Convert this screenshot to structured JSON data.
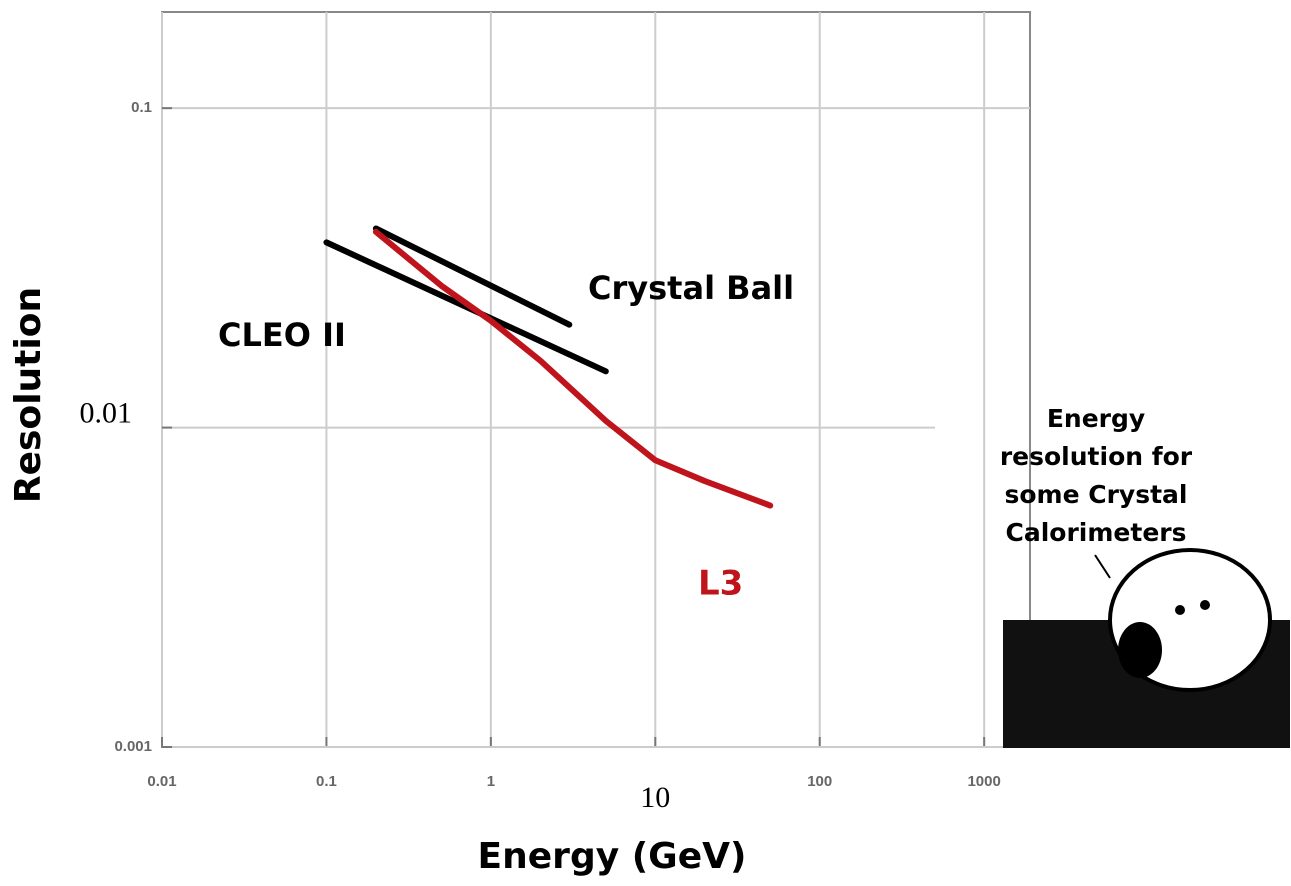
{
  "chart_data": {
    "type": "line",
    "xlabel": "Energy (GeV)",
    "ylabel": "Resolution",
    "xscale": "log",
    "yscale": "log",
    "grid": true,
    "xlim": [
      0.01,
      1900
    ],
    "ylim": [
      0.001,
      0.2
    ],
    "xticks": [
      0.01,
      0.1,
      1,
      10,
      100,
      1000
    ],
    "yticks": [
      0.001,
      0.01,
      0.1
    ],
    "series": [
      {
        "name": "CLEO II",
        "color": "#000000",
        "x": [
          0.1,
          5
        ],
        "values": [
          0.038,
          0.015
        ]
      },
      {
        "name": "Crystal Ball",
        "color": "#000000",
        "x": [
          0.2,
          3
        ],
        "values": [
          0.042,
          0.021
        ]
      },
      {
        "name": "L3",
        "color": "#c0141c",
        "x": [
          0.2,
          0.5,
          1,
          2,
          5,
          10,
          20,
          50
        ],
        "values": [
          0.041,
          0.0278,
          0.0216,
          0.0162,
          0.0105,
          0.0079,
          0.0068,
          0.0057
        ]
      }
    ],
    "annotation": [
      "Energy",
      "resolution for",
      "some Crystal",
      "Calorimeters"
    ]
  }
}
